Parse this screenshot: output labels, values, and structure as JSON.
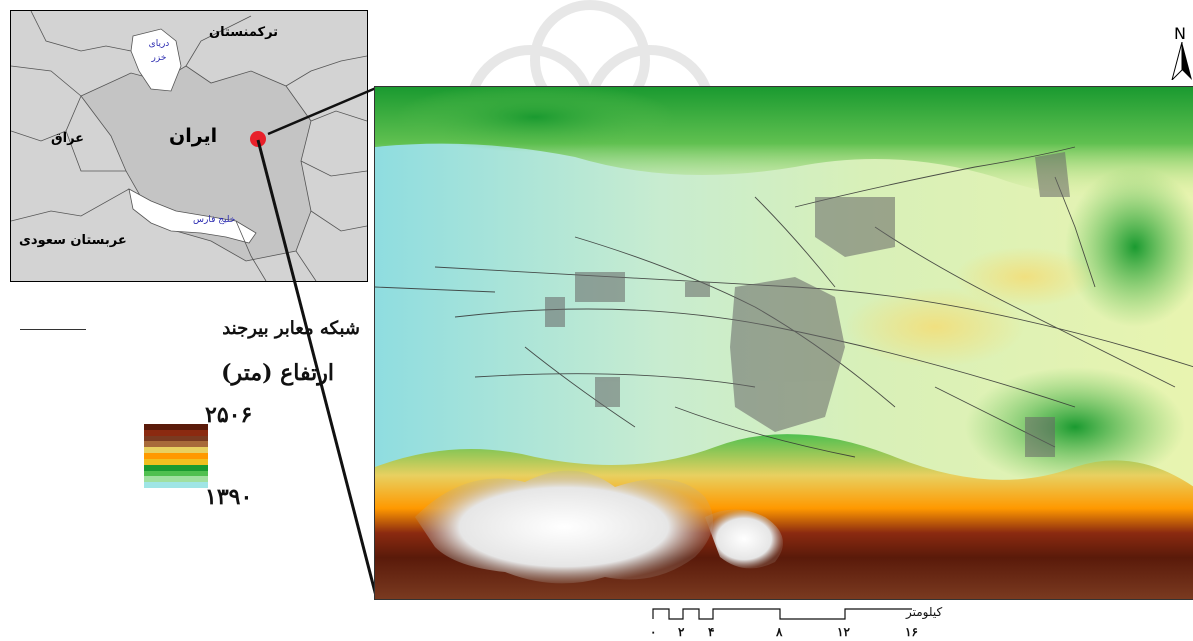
{
  "inset": {
    "labels": {
      "turkmenistan": "ترکمنستان",
      "caspian_sea": "دریای\nخزر",
      "iraq": "عراق",
      "iran": "ایران",
      "persian_gulf": "خلیج فارس",
      "saudi_arabia": "عربستان سعودی"
    },
    "colors": {
      "land": "#d3d3d3",
      "iran": "#c4c4c4",
      "water": "#ffffff",
      "location_marker": "#e8202a"
    }
  },
  "legend": {
    "road_network_label": "شبکه معابر بیرجند",
    "elevation_title": "ارتفاع (متر)",
    "elevation_max": "۲۵۰۶",
    "elevation_min": "۱۳۹۰",
    "ramp_colors": [
      "#5a1a0a",
      "#8b2a10",
      "#7a3a20",
      "#a86a3a",
      "#e8d060",
      "#ff9900",
      "#f0c020",
      "#1a9a30",
      "#50c050",
      "#a0e0a0",
      "#9fe5e5",
      "#ffffff"
    ]
  },
  "north_arrow": {
    "letter": "N"
  },
  "scale_bar": {
    "unit_label": "کیلومتر",
    "ticks": [
      "۰",
      "۲",
      "۴",
      "۸",
      "۱۲",
      "۱۶"
    ]
  }
}
